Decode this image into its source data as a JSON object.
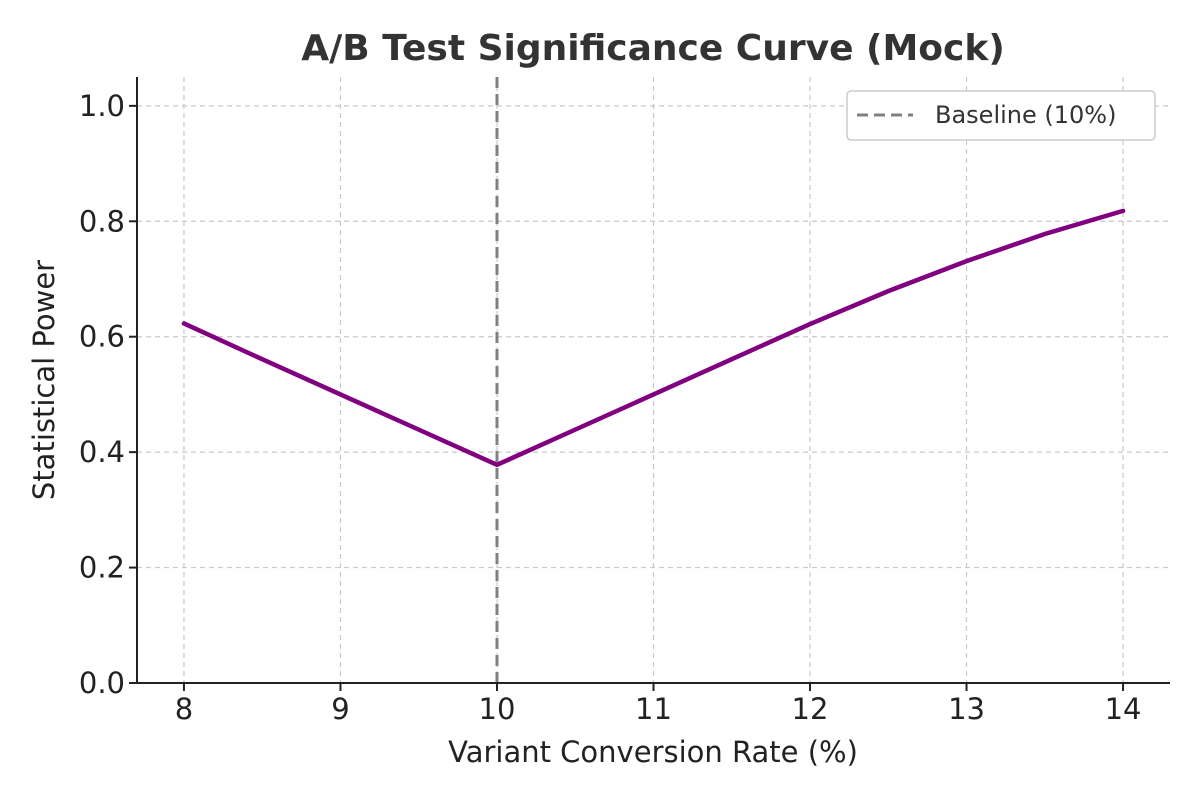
{
  "chart_data": {
    "type": "line",
    "title": "A/B Test Significance Curve (Mock)",
    "xlabel": "Variant Conversion Rate (%)",
    "ylabel": "Statistical Power",
    "xlim": [
      7.7,
      14.3
    ],
    "ylim": [
      0.0,
      1.05
    ],
    "x_ticks": [
      8,
      9,
      10,
      11,
      12,
      13,
      14
    ],
    "x_tick_labels": [
      "8",
      "9",
      "10",
      "11",
      "12",
      "13",
      "14"
    ],
    "y_ticks": [
      0.0,
      0.2,
      0.4,
      0.6,
      0.8,
      1.0
    ],
    "y_tick_labels": [
      "0.0",
      "0.2",
      "0.4",
      "0.6",
      "0.8",
      "1.0"
    ],
    "grid": true,
    "legend_position": "top-right",
    "series": [
      {
        "color": "#800080",
        "x": [
          8,
          8.5,
          9,
          9.5,
          10,
          10.5,
          11,
          11.5,
          12,
          12.5,
          13,
          13.5,
          14
        ],
        "y": [
          0.623,
          0.561,
          0.5,
          0.439,
          0.378,
          0.439,
          0.5,
          0.561,
          0.622,
          0.679,
          0.731,
          0.778,
          0.818
        ]
      }
    ],
    "reference_lines": [
      {
        "orientation": "vertical",
        "x": 10,
        "label": "Baseline (10%)",
        "color": "#808080",
        "style": "dashed"
      }
    ]
  }
}
